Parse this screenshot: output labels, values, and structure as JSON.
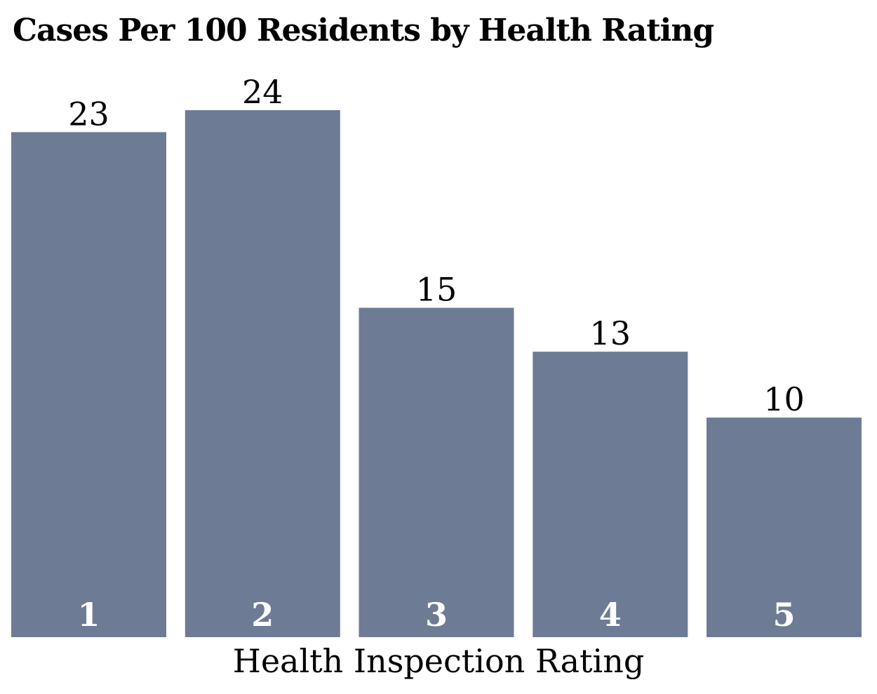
{
  "chart_data": {
    "type": "bar",
    "title": "Cases Per 100 Residents by Health Rating",
    "xlabel": "Health Inspection Rating",
    "ylabel": "",
    "categories": [
      "1",
      "2",
      "3",
      "4",
      "5"
    ],
    "values": [
      23,
      24,
      15,
      13,
      10
    ],
    "value_labels": [
      "23",
      "24",
      "15",
      "13",
      "10"
    ],
    "ylim": [
      0,
      24
    ],
    "grid": false,
    "legend": "none",
    "colors": {
      "bar": "#6d7c94",
      "category_label": "#ffffff",
      "value_label": "#000000",
      "text": "#000000"
    }
  }
}
